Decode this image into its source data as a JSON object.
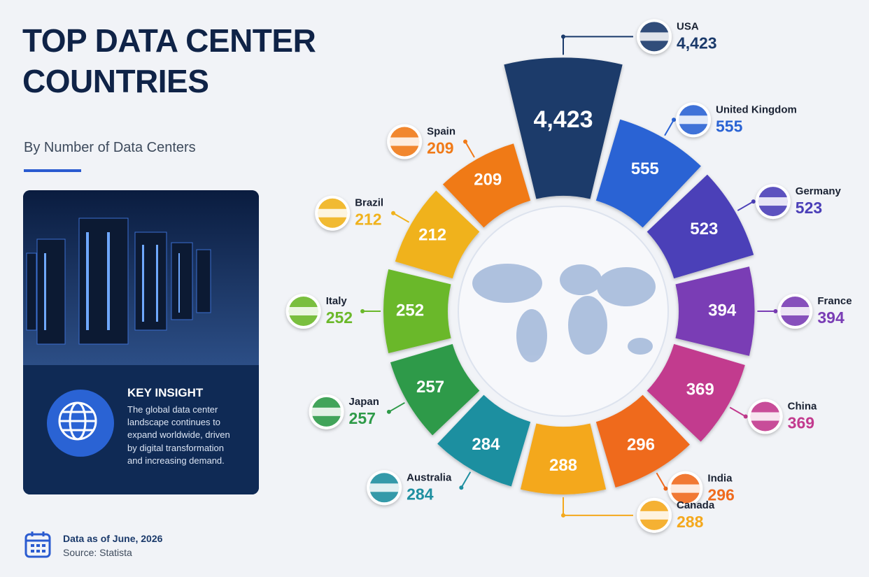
{
  "chart_data": {
    "type": "radial-bar",
    "title": "TOP DATA CENTER COUNTRIES",
    "subtitle": "By Number of Data Centers",
    "categories": [
      "USA",
      "United Kingdom",
      "Germany",
      "France",
      "China",
      "India",
      "Canada",
      "Australia",
      "Japan",
      "Italy",
      "Brazil",
      "Spain"
    ],
    "values": [
      4423,
      555,
      523,
      394,
      369,
      296,
      288,
      284,
      257,
      252,
      212,
      209
    ],
    "value_labels": [
      "4,423",
      "555",
      "523",
      "394",
      "369",
      "296",
      "288",
      "284",
      "257",
      "252",
      "212",
      "209"
    ],
    "colors": [
      "#1b3a6b",
      "#2a63d4",
      "#4b3fb8",
      "#7a3db5",
      "#c23a8e",
      "#ef6a1e",
      "#f4a81d",
      "#1f8fa0",
      "#2e9a48",
      "#6bb82a",
      "#f0b21c",
      "#f07a18"
    ]
  },
  "insight": {
    "title": "KEY INSIGHT",
    "text": "The global data center landscape continues to expand worldwide, driven by digital transformation and increasing demand."
  },
  "footer": {
    "date": "Data as of June, 2026",
    "source": "Source: Statista"
  }
}
